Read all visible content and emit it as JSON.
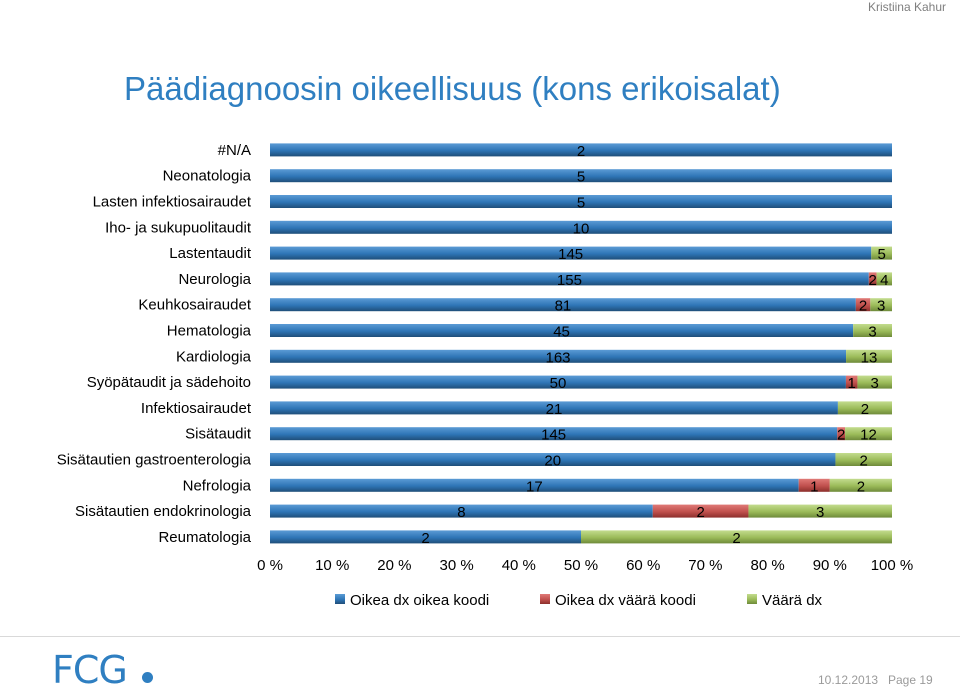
{
  "header": {
    "author": "Kristiina Kahur"
  },
  "slide": {
    "title": "Päädiagnoosin oikeellisuus (kons erikoisalat)"
  },
  "footer": {
    "logo": "FCG",
    "date": "10.12.2013",
    "page": "Page 19"
  },
  "colors": {
    "blue": "#2e75b6",
    "red": "#c0504d",
    "green": "#9bbb59",
    "title": "#2f7fc1"
  },
  "chart_data": {
    "type": "bar",
    "orientation": "horizontal",
    "stacking": "percent",
    "categories": [
      "#N/A",
      "Neonatologia",
      "Lasten infektiosairaudet",
      "Iho- ja sukupuolitaudit",
      "Lastentaudit",
      "Neurologia",
      "Keuhkosairaudet",
      "Hematologia",
      "Kardiologia",
      "Syöpätaudit ja sädehoito",
      "Infektiosairaudet",
      "Sisätaudit",
      "Sisätautien gastroenterologia",
      "Nefrologia",
      "Sisätautien endokrinologia",
      "Reumatologia"
    ],
    "series": [
      {
        "name": "Oikea dx oikea koodi",
        "values": [
          2,
          5,
          5,
          10,
          145,
          155,
          81,
          45,
          163,
          50,
          21,
          145,
          20,
          17,
          8,
          2
        ]
      },
      {
        "name": "Oikea dx väärä koodi",
        "values": [
          0,
          0,
          0,
          0,
          0,
          2,
          2,
          0,
          0,
          1,
          0,
          2,
          0,
          1,
          2,
          0
        ]
      },
      {
        "name": "Väärä dx",
        "values": [
          0,
          0,
          0,
          0,
          5,
          4,
          3,
          3,
          13,
          3,
          2,
          12,
          2,
          2,
          3,
          2
        ]
      }
    ],
    "xlim": [
      0,
      100
    ],
    "x_ticks": [
      "0 %",
      "10 %",
      "20 %",
      "30 %",
      "40 %",
      "50 %",
      "60 %",
      "70 %",
      "80 %",
      "90 %",
      "100 %"
    ],
    "legend_position": "bottom"
  }
}
